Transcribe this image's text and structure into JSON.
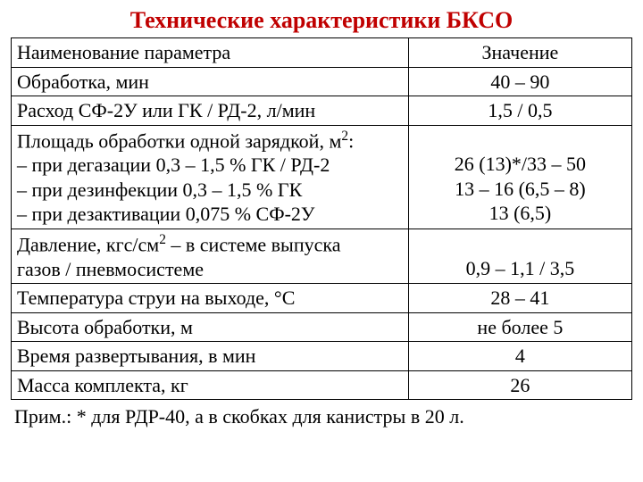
{
  "title": "Технические характеристики БКСО",
  "title_color": "#c00000",
  "headers": {
    "param": "Наименование параметра",
    "value": "Значение"
  },
  "rows": [
    {
      "param": "Обработка, мин",
      "value": "40 – 90"
    },
    {
      "param": "Расход СФ-2У или ГК / РД-2, л/мин",
      "value": "1,5 / 0,5"
    },
    {
      "param_html": "Площадь обработки одной зарядкой, м<sup>2</sup>:\n– при дегазации 0,3 – 1,5 % ГК / РД-2\n– при дезинфекции 0,3 – 1,5 % ГК\n– при дезактивации 0,075 % СФ-2У",
      "value_html": "\n26 (13)*/33 – 50\n13 – 16 (6,5 – 8)\n13 (6,5)",
      "multiline": true
    },
    {
      "param_html": "Давление, кгс/см<sup>2</sup>   – в системе выпуска\nгазов / пневмосистеме",
      "value_html": "\n0,9 – 1,1 / 3,5",
      "multiline": true
    },
    {
      "param": "Температура струи на выходе, °С",
      "value": "28 – 41"
    },
    {
      "param": "Высота обработки, м",
      "value": "не более 5"
    },
    {
      "param": "Время развертывания, в мин",
      "value": "4"
    },
    {
      "param": "Масса комплекта, кг",
      "value": "26"
    }
  ],
  "footnote": "Прим.: * для РДР-40, а в скобках для канистры в 20 л."
}
